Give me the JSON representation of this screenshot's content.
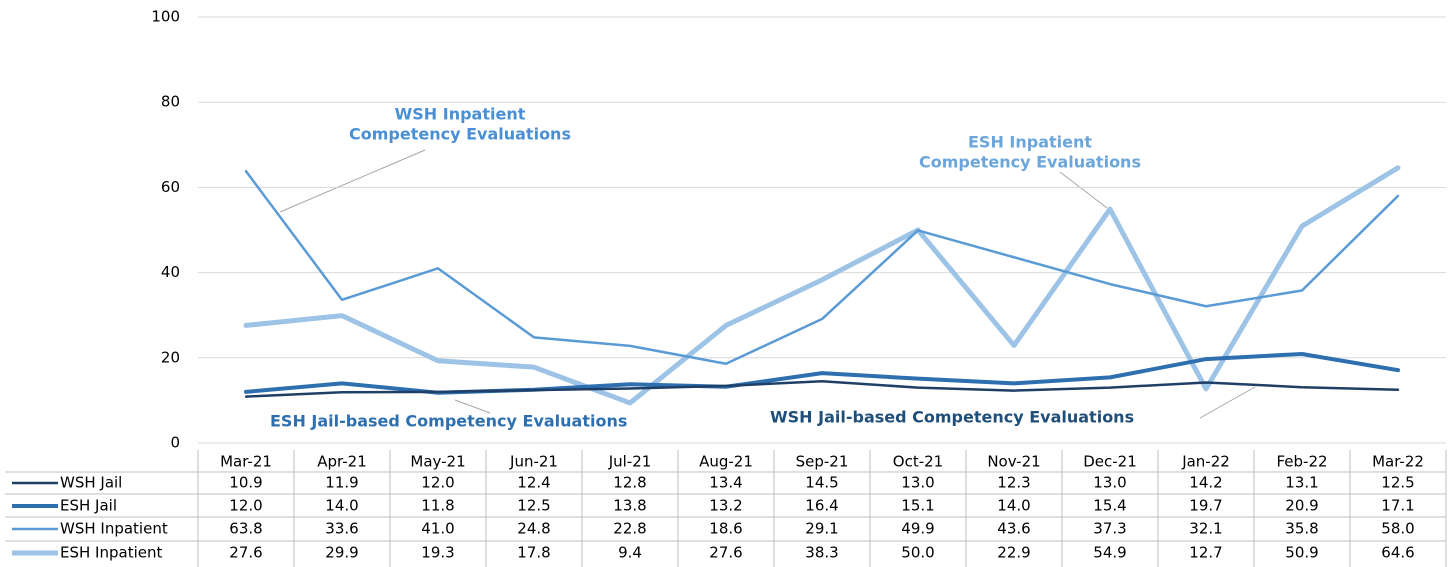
{
  "chart_data": {
    "type": "line",
    "categories": [
      "Mar-21",
      "Apr-21",
      "May-21",
      "Jun-21",
      "Jul-21",
      "Aug-21",
      "Sep-21",
      "Oct-21",
      "Nov-21",
      "Dec-21",
      "Jan-22",
      "Feb-22",
      "Mar-22"
    ],
    "series": [
      {
        "name": "WSH Jail",
        "color": "#1f3f66",
        "values": [
          10.9,
          11.9,
          12.0,
          12.4,
          12.8,
          13.4,
          14.5,
          13.0,
          12.3,
          13.0,
          14.2,
          13.1,
          12.5
        ],
        "value_labels": [
          "10.9",
          "11.9",
          "12.0",
          "12.4",
          "12.8",
          "13.4",
          "14.5",
          "13.0",
          "12.3",
          "13.0",
          "14.2",
          "13.1",
          "12.5"
        ]
      },
      {
        "name": "ESH Jail",
        "color": "#2e6fb0",
        "values": [
          12.0,
          14.0,
          11.8,
          12.5,
          13.8,
          13.2,
          16.4,
          15.1,
          14.0,
          15.4,
          19.7,
          20.9,
          17.1
        ],
        "value_labels": [
          "12.0",
          "14.0",
          "11.8",
          "12.5",
          "13.8",
          "13.2",
          "16.4",
          "15.1",
          "14.0",
          "15.4",
          "19.7",
          "20.9",
          "17.1"
        ]
      },
      {
        "name": "WSH Inpatient",
        "color": "#5b9bd5",
        "values": [
          63.8,
          33.6,
          41.0,
          24.8,
          22.8,
          18.6,
          29.1,
          49.9,
          43.6,
          37.3,
          32.1,
          35.8,
          58.0
        ],
        "value_labels": [
          "63.8",
          "33.6",
          "41.0",
          "24.8",
          "22.8",
          "18.6",
          "29.1",
          "49.9",
          "43.6",
          "37.3",
          "32.1",
          "35.8",
          "58.0"
        ]
      },
      {
        "name": "ESH Inpatient",
        "color": "#9dc3e6",
        "values": [
          27.6,
          29.9,
          19.3,
          17.8,
          9.4,
          27.6,
          38.3,
          50.0,
          22.9,
          54.9,
          12.7,
          50.9,
          64.6
        ],
        "value_labels": [
          "27.6",
          "29.9",
          "19.3",
          "17.8",
          "9.4",
          "27.6",
          "38.3",
          "50.0",
          "22.9",
          "54.9",
          "12.7",
          "50.9",
          "64.6"
        ]
      }
    ],
    "ylim": [
      0,
      100
    ],
    "yticks": [
      0,
      20,
      40,
      60,
      80,
      100
    ],
    "grid": true,
    "annotations": [
      {
        "text": [
          "WSH Inpatient",
          "Competency Evaluations"
        ],
        "color": "#4a8fd4"
      },
      {
        "text": [
          "ESH Inpatient",
          "Competency Evaluations"
        ],
        "color": "#6aa6dc"
      },
      {
        "text": [
          "ESH Jail-based Competency Evaluations"
        ],
        "color": "#2e6fb0"
      },
      {
        "text": [
          "WSH Jail-based Competency Evaluations"
        ],
        "color": "#1f4e79"
      }
    ]
  }
}
